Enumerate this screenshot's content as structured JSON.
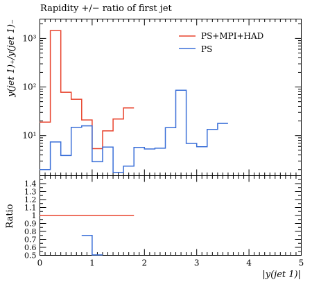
{
  "chart_data": [
    {
      "type": "line",
      "title": "Rapidity +/− ratio of first jet",
      "ylabel": "y(jet 1)₊/y(jet 1)₋",
      "yscale": "log",
      "ylim": [
        1.5,
        2500
      ],
      "xlim": [
        0,
        5
      ],
      "legend": "top-right",
      "y_tick_labels": [
        "10¹",
        "10²",
        "10³"
      ],
      "series": [
        {
          "name": "PS+MPI+HAD",
          "color": "#e8432d",
          "bin_edges": [
            0,
            0.2,
            0.4,
            0.6,
            0.8,
            1.0,
            1.2,
            1.4,
            1.6,
            1.8
          ],
          "values": [
            19,
            1450,
            78,
            56,
            21,
            5.4,
            12.5,
            22,
            37
          ]
        },
        {
          "name": "PS",
          "color": "#3a6fd8",
          "bin_edges": [
            0,
            0.2,
            0.4,
            0.6,
            0.8,
            1.0,
            1.2,
            1.4,
            1.6,
            1.8,
            2.0,
            2.2,
            2.4,
            2.6,
            2.8,
            3.0,
            3.2,
            3.4,
            3.6
          ],
          "values": [
            2.0,
            7.4,
            3.9,
            14.8,
            15.9,
            2.9,
            5.8,
            1.75,
            2.35,
            5.7,
            5.3,
            5.5,
            14.6,
            86,
            6.9,
            5.9,
            13.4,
            17.8
          ]
        }
      ]
    },
    {
      "type": "line",
      "ylabel": "Ratio",
      "xlabel": "|y(jet 1)|",
      "xlim": [
        0,
        5
      ],
      "ylim": [
        0.5,
        1.5
      ],
      "x_ticks": [
        0,
        1,
        2,
        3,
        4,
        5
      ],
      "x_tick_labels": [
        "0",
        "1",
        "2",
        "3",
        "4",
        "5"
      ],
      "y_ticks": [
        0.5,
        0.6,
        0.7,
        0.8,
        0.9,
        1.0,
        1.1,
        1.2,
        1.3,
        1.4
      ],
      "y_tick_labels": [
        "0.5",
        "0.6",
        "0.7",
        "0.8",
        "0.9",
        "1",
        "1.1",
        "1.2",
        "1.3",
        "1.4"
      ],
      "series": [
        {
          "name": "PS+MPI+HAD",
          "color": "#e8432d",
          "bin_edges": [
            0,
            0.2,
            0.4,
            0.6,
            0.8,
            1.0,
            1.2,
            1.4,
            1.6,
            1.8
          ],
          "values": [
            1,
            1,
            1,
            1,
            1,
            1,
            1,
            1,
            1
          ]
        },
        {
          "name": "PS",
          "color": "#3a6fd8",
          "bin_edges": [
            0.8,
            1.0,
            1.2
          ],
          "values": [
            0.75,
            0.505
          ]
        }
      ]
    }
  ]
}
